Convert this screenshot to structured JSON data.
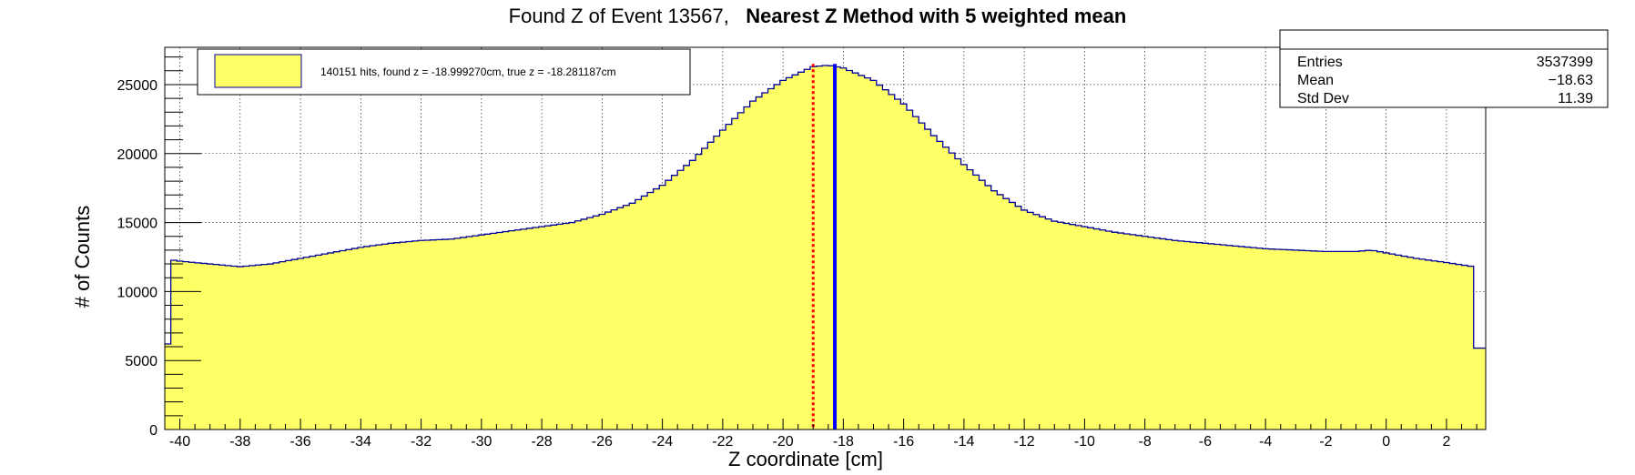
{
  "chart_data": {
    "type": "histogram",
    "title": {
      "prefix": "Found Z of Event 13567,",
      "bold": "Nearest Z Method with 5 weighted mean"
    },
    "xlabel": "Z coordinate [cm]",
    "ylabel": "# of Counts",
    "xlim": [
      -40.5,
      3.3
    ],
    "ylim": [
      0,
      27700
    ],
    "x_ticks": [
      -40,
      -38,
      -36,
      -34,
      -32,
      -30,
      -28,
      -26,
      -24,
      -22,
      -20,
      -18,
      -16,
      -14,
      -12,
      -10,
      -8,
      -6,
      -4,
      -2,
      0,
      2
    ],
    "y_ticks": [
      0,
      5000,
      10000,
      15000,
      20000,
      25000
    ],
    "grid": true,
    "fill_color": "#ffff66",
    "line_color": "#000099",
    "profile": [
      {
        "x": -40.5,
        "y": 6200
      },
      {
        "x": -40.3,
        "y": 12300
      },
      {
        "x": -40.0,
        "y": 12200
      },
      {
        "x": -39.0,
        "y": 12000
      },
      {
        "x": -38.0,
        "y": 11800
      },
      {
        "x": -37.0,
        "y": 12000
      },
      {
        "x": -36.0,
        "y": 12400
      },
      {
        "x": -35.0,
        "y": 12800
      },
      {
        "x": -34.0,
        "y": 13200
      },
      {
        "x": -33.0,
        "y": 13500
      },
      {
        "x": -32.0,
        "y": 13700
      },
      {
        "x": -31.0,
        "y": 13800
      },
      {
        "x": -30.0,
        "y": 14100
      },
      {
        "x": -29.0,
        "y": 14400
      },
      {
        "x": -28.0,
        "y": 14700
      },
      {
        "x": -27.0,
        "y": 15000
      },
      {
        "x": -26.0,
        "y": 15600
      },
      {
        "x": -25.0,
        "y": 16400
      },
      {
        "x": -24.0,
        "y": 17700
      },
      {
        "x": -23.0,
        "y": 19500
      },
      {
        "x": -22.0,
        "y": 21700
      },
      {
        "x": -21.0,
        "y": 23800
      },
      {
        "x": -20.0,
        "y": 25300
      },
      {
        "x": -19.0,
        "y": 26300
      },
      {
        "x": -18.5,
        "y": 26400
      },
      {
        "x": -18.0,
        "y": 26200
      },
      {
        "x": -17.0,
        "y": 25300
      },
      {
        "x": -16.0,
        "y": 23600
      },
      {
        "x": -15.0,
        "y": 21300
      },
      {
        "x": -14.0,
        "y": 19200
      },
      {
        "x": -13.0,
        "y": 17300
      },
      {
        "x": -12.0,
        "y": 15900
      },
      {
        "x": -11.0,
        "y": 15100
      },
      {
        "x": -10.0,
        "y": 14700
      },
      {
        "x": -9.0,
        "y": 14300
      },
      {
        "x": -8.0,
        "y": 14000
      },
      {
        "x": -7.0,
        "y": 13700
      },
      {
        "x": -6.0,
        "y": 13500
      },
      {
        "x": -5.0,
        "y": 13300
      },
      {
        "x": -4.0,
        "y": 13100
      },
      {
        "x": -3.0,
        "y": 13000
      },
      {
        "x": -2.0,
        "y": 12900
      },
      {
        "x": -1.0,
        "y": 12900
      },
      {
        "x": -0.5,
        "y": 13000
      },
      {
        "x": 0.0,
        "y": 12800
      },
      {
        "x": 1.0,
        "y": 12400
      },
      {
        "x": 2.0,
        "y": 12100
      },
      {
        "x": 2.9,
        "y": 11800
      },
      {
        "x": 3.0,
        "y": 5900
      },
      {
        "x": 3.3,
        "y": 5900
      }
    ],
    "markers": [
      {
        "name": "found z",
        "x": -18.99927,
        "color": "#ff0000",
        "style": "dotted"
      },
      {
        "name": "true z",
        "x": -18.281187,
        "color": "#0000ff",
        "style": "solid"
      }
    ],
    "legend": {
      "text": "140151 hits, found z = -18.999270cm, true z = -18.281187cm",
      "placement": "top-left"
    },
    "stats": [
      {
        "label": "Entries",
        "value": "3537399"
      },
      {
        "label": "Mean",
        "value": "−18.63"
      },
      {
        "label": "Std Dev",
        "value": "11.39"
      }
    ]
  }
}
